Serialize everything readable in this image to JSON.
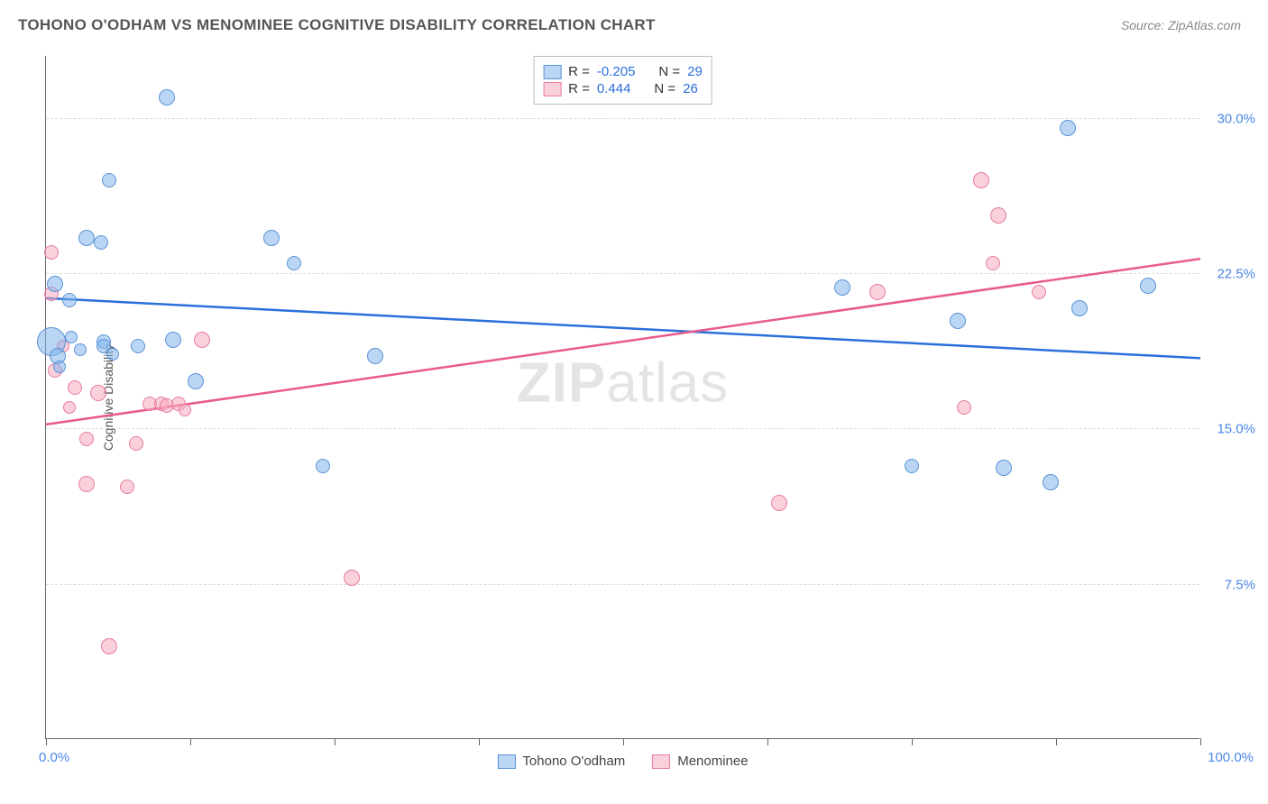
{
  "header": {
    "title": "TOHONO O'ODHAM VS MENOMINEE COGNITIVE DISABILITY CORRELATION CHART",
    "source": "Source: ZipAtlas.com"
  },
  "chart": {
    "type": "scatter",
    "ylabel": "Cognitive Disability",
    "xlim": [
      0,
      100
    ],
    "ylim": [
      0,
      33
    ],
    "x_axis_labels": {
      "min": "0.0%",
      "max": "100.0%"
    },
    "y_ticks": [
      7.5,
      15.0,
      22.5,
      30.0
    ],
    "y_tick_labels": [
      "7.5%",
      "15.0%",
      "22.5%",
      "30.0%"
    ],
    "x_minor_ticks": [
      0,
      12.5,
      25,
      37.5,
      50,
      62.5,
      75,
      87.5,
      100
    ],
    "background_color": "#ffffff",
    "grid_color": "#dddddd",
    "axis_color": "#666666",
    "colors": {
      "series_a_fill": "rgba(130,180,235,0.55)",
      "series_a_stroke": "#5b93d6",
      "series_b_fill": "rgba(245,170,190,0.55)",
      "series_b_stroke": "#e87ba0",
      "trend_a": "#2a6fdb",
      "trend_b": "#e85b8c",
      "tick_label": "#4a86e8"
    },
    "watermark": {
      "bold": "ZIP",
      "light": "atlas"
    },
    "legend_top": {
      "rows": [
        {
          "swatch": "a",
          "r_label": "R =",
          "r_value": "-0.205",
          "n_label": "N =",
          "n_value": "29"
        },
        {
          "swatch": "b",
          "r_label": "R =",
          "r_value": " 0.444",
          "n_label": "N =",
          "n_value": "26"
        }
      ]
    },
    "legend_bottom": [
      {
        "swatch": "a",
        "label": "Tohono O'odham"
      },
      {
        "swatch": "b",
        "label": "Menominee"
      }
    ],
    "series_a": {
      "name": "Tohono O'odham",
      "trend": {
        "y_at_x0": 21.3,
        "y_at_x100": 18.4
      },
      "points": [
        {
          "x": 0.5,
          "y": 19.2,
          "r": 16
        },
        {
          "x": 0.8,
          "y": 22.0,
          "r": 9
        },
        {
          "x": 1.0,
          "y": 18.5,
          "r": 9
        },
        {
          "x": 2.0,
          "y": 21.2,
          "r": 8
        },
        {
          "x": 3.5,
          "y": 24.2,
          "r": 9
        },
        {
          "x": 4.8,
          "y": 24.0,
          "r": 8
        },
        {
          "x": 5.0,
          "y": 19.2,
          "r": 8
        },
        {
          "x": 5.0,
          "y": 19.0,
          "r": 8
        },
        {
          "x": 5.5,
          "y": 27.0,
          "r": 8
        },
        {
          "x": 8.0,
          "y": 19.0,
          "r": 8
        },
        {
          "x": 10.5,
          "y": 31.0,
          "r": 9
        },
        {
          "x": 11.0,
          "y": 19.3,
          "r": 9
        },
        {
          "x": 13.0,
          "y": 17.3,
          "r": 9
        },
        {
          "x": 19.5,
          "y": 24.2,
          "r": 9
        },
        {
          "x": 21.5,
          "y": 23.0,
          "r": 8
        },
        {
          "x": 24.0,
          "y": 13.2,
          "r": 8
        },
        {
          "x": 28.5,
          "y": 18.5,
          "r": 9
        },
        {
          "x": 69.0,
          "y": 21.8,
          "r": 9
        },
        {
          "x": 75.0,
          "y": 13.2,
          "r": 8
        },
        {
          "x": 79.0,
          "y": 20.2,
          "r": 9
        },
        {
          "x": 83.0,
          "y": 13.1,
          "r": 9
        },
        {
          "x": 87.0,
          "y": 12.4,
          "r": 9
        },
        {
          "x": 88.5,
          "y": 29.5,
          "r": 9
        },
        {
          "x": 89.5,
          "y": 20.8,
          "r": 9
        },
        {
          "x": 95.5,
          "y": 21.9,
          "r": 9
        },
        {
          "x": 5.8,
          "y": 18.6,
          "r": 7
        },
        {
          "x": 3.0,
          "y": 18.8,
          "r": 7
        },
        {
          "x": 2.2,
          "y": 19.4,
          "r": 7
        },
        {
          "x": 1.2,
          "y": 18.0,
          "r": 7
        }
      ]
    },
    "series_b": {
      "name": "Menominee",
      "trend": {
        "y_at_x0": 15.2,
        "y_at_x100": 23.2
      },
      "points": [
        {
          "x": 0.5,
          "y": 21.5,
          "r": 8
        },
        {
          "x": 0.8,
          "y": 17.8,
          "r": 8
        },
        {
          "x": 0.5,
          "y": 23.5,
          "r": 8
        },
        {
          "x": 2.5,
          "y": 17.0,
          "r": 8
        },
        {
          "x": 3.5,
          "y": 14.5,
          "r": 8
        },
        {
          "x": 3.5,
          "y": 12.3,
          "r": 9
        },
        {
          "x": 4.5,
          "y": 16.7,
          "r": 9
        },
        {
          "x": 5.5,
          "y": 4.5,
          "r": 9
        },
        {
          "x": 7.0,
          "y": 12.2,
          "r": 8
        },
        {
          "x": 7.8,
          "y": 14.3,
          "r": 8
        },
        {
          "x": 9.0,
          "y": 16.2,
          "r": 8
        },
        {
          "x": 10.0,
          "y": 16.2,
          "r": 8
        },
        {
          "x": 10.5,
          "y": 16.1,
          "r": 8
        },
        {
          "x": 11.5,
          "y": 16.2,
          "r": 8
        },
        {
          "x": 13.5,
          "y": 19.3,
          "r": 9
        },
        {
          "x": 26.5,
          "y": 7.8,
          "r": 9
        },
        {
          "x": 63.5,
          "y": 11.4,
          "r": 9
        },
        {
          "x": 72.0,
          "y": 21.6,
          "r": 9
        },
        {
          "x": 79.5,
          "y": 16.0,
          "r": 8
        },
        {
          "x": 81.0,
          "y": 27.0,
          "r": 9
        },
        {
          "x": 82.5,
          "y": 25.3,
          "r": 9
        },
        {
          "x": 82.0,
          "y": 23.0,
          "r": 8
        },
        {
          "x": 86.0,
          "y": 21.6,
          "r": 8
        },
        {
          "x": 1.5,
          "y": 19.0,
          "r": 7
        },
        {
          "x": 2.0,
          "y": 16.0,
          "r": 7
        },
        {
          "x": 12.0,
          "y": 15.9,
          "r": 7
        }
      ]
    }
  }
}
